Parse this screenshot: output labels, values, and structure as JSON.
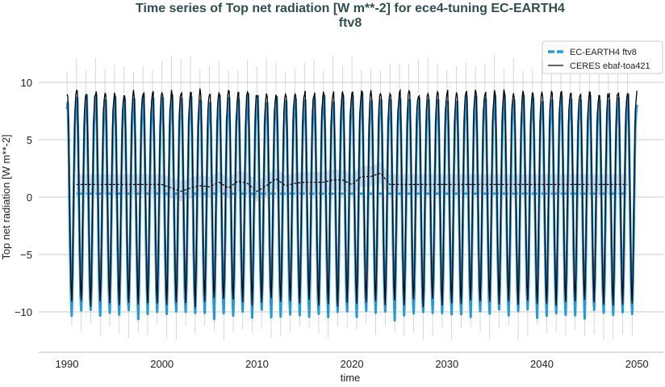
{
  "chart_data": {
    "type": "line",
    "title_line1": "Time series of Top net radiation [W m**-2] for ece4-tuning EC-EARTH4",
    "title_line2": "ftv8",
    "xlabel": "time",
    "ylabel": "Top net radiation [W m**-2]",
    "xlim": [
      1987.0,
      2053.0
    ],
    "ylim": [
      -13.5,
      13.0
    ],
    "xticks": [
      "1990",
      "2000",
      "2010",
      "2020",
      "2030",
      "2040",
      "2050"
    ],
    "yticks": [
      "10",
      "5",
      "0",
      "−5",
      "−10"
    ],
    "ytick_values": [
      10,
      5,
      0,
      -5,
      -10
    ],
    "grid": "horizontal",
    "legend_position": "top-right",
    "time_range": [
      1990,
      2050
    ],
    "series": [
      {
        "name": "EC-EARTH4 ftv8",
        "color": "#1f9bde",
        "style": "thick dashed",
        "monthly_climatology": [
          7.8,
          8.6,
          5.2,
          0.3,
          -4.6,
          -8.5,
          -10.2,
          -7.6,
          -2.8,
          2.2,
          6.3,
          7.6
        ],
        "annual_mean": 0.3
      },
      {
        "name": "CERES ebaf-toa421",
        "color": "#000000",
        "style": "solid",
        "monthly_climatology": [
          9.1,
          9.0,
          6.0,
          1.2,
          -3.8,
          -7.6,
          -9.2,
          -6.6,
          -1.6,
          3.2,
          7.4,
          8.6
        ],
        "annual_mean_years": [
          1991,
          1992,
          1993,
          1994,
          1995,
          1996,
          1997,
          1998,
          1999,
          2000,
          2001,
          2002,
          2003,
          2004,
          2005,
          2006,
          2007,
          2008,
          2009,
          2010,
          2011,
          2012,
          2013,
          2014,
          2015,
          2016,
          2017,
          2018,
          2019,
          2020,
          2021,
          2022,
          2023,
          2024,
          2049
        ],
        "annual_mean_values": [
          1.1,
          1.1,
          1.1,
          1.1,
          1.1,
          1.1,
          1.1,
          1.1,
          1.1,
          1.1,
          0.8,
          0.5,
          0.8,
          1.0,
          0.9,
          1.3,
          0.8,
          1.4,
          1.2,
          0.5,
          1.0,
          1.6,
          1.0,
          1.2,
          1.3,
          1.3,
          1.3,
          1.5,
          1.5,
          1.1,
          1.8,
          1.8,
          2.1,
          1.1,
          1.1
        ],
        "spread_band": 0.9
      }
    ]
  }
}
